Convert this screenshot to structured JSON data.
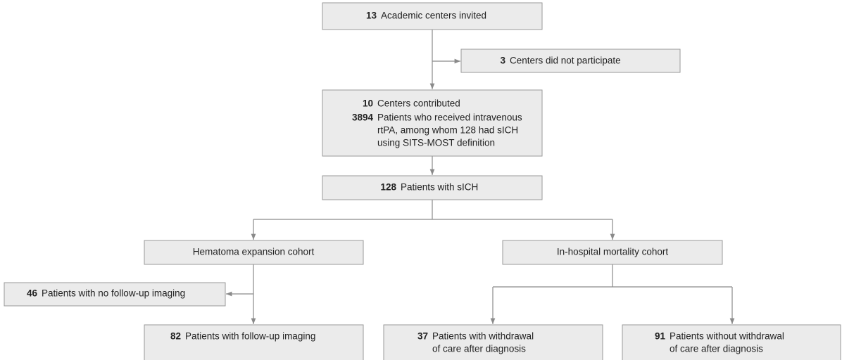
{
  "nodes": [
    {
      "items": [
        {
          "number": "13",
          "lines": [
            "Academic centers invited"
          ]
        }
      ]
    },
    {
      "items": [
        {
          "number": "3",
          "lines": [
            "Centers did not participate"
          ]
        }
      ]
    },
    {
      "items": [
        {
          "number": "10",
          "lines": [
            "Centers contributed"
          ]
        },
        {
          "number": "3894",
          "lines": [
            "Patients who received intravenous",
            "rtPA, among whom 128 had sICH",
            "using SITS-MOST definition"
          ]
        }
      ]
    },
    {
      "items": [
        {
          "number": "128",
          "lines": [
            "Patients with sICH"
          ]
        }
      ]
    },
    {
      "label": "Hematoma expansion cohort"
    },
    {
      "label": "In-hospital mortality cohort"
    },
    {
      "items": [
        {
          "number": "46",
          "lines": [
            "Patients with no follow-up imaging"
          ]
        }
      ]
    },
    {
      "items": [
        {
          "number": "82",
          "lines": [
            "Patients with follow-up imaging"
          ]
        }
      ]
    },
    {
      "items": [
        {
          "number": "37",
          "lines": [
            "Patients with withdrawal",
            "of care after diagnosis"
          ]
        }
      ]
    },
    {
      "items": [
        {
          "number": "91",
          "lines": [
            "Patients without withdrawal",
            "of care after diagnosis"
          ]
        }
      ]
    }
  ]
}
